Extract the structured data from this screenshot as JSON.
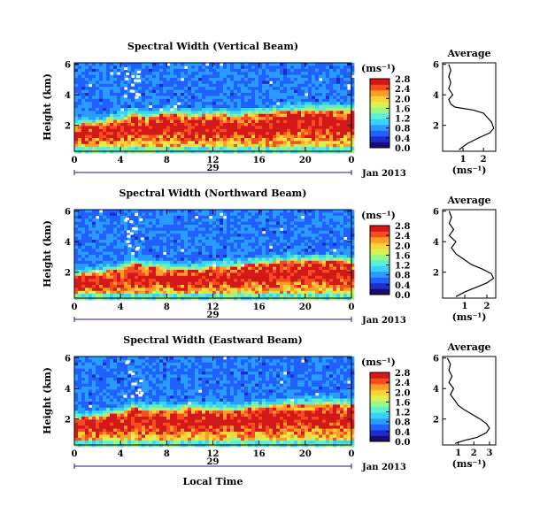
{
  "figure": {
    "date_label": "Jan 2013",
    "x_axis_label": "Local Time",
    "day_label": "29",
    "colorbar_unit": "(ms⁻¹)",
    "average_title": "Average",
    "average_xlabel": "(ms⁻¹)",
    "colormap": [
      "#1a0a7a",
      "#1a2ecc",
      "#2060ff",
      "#2a9cff",
      "#38d2ff",
      "#5cf0d0",
      "#9cf882",
      "#dcf050",
      "#ffd23c",
      "#ff9b28",
      "#f84c20",
      "#d21818"
    ]
  },
  "chart_data": [
    {
      "type": "heatmap",
      "title": "Spectral Width (Vertical Beam)",
      "ylabel": "Height (km)",
      "xticks": [
        "0",
        "4",
        "8",
        "12",
        "16",
        "20",
        "0"
      ],
      "xlim": [
        0,
        24
      ],
      "yticks": [
        "2",
        "4",
        "6"
      ],
      "ylim": [
        0.3,
        6.1
      ],
      "colorbar": {
        "min": 0.0,
        "max": 2.8,
        "ticks": [
          "2.8",
          "2.4",
          "2.0",
          "1.6",
          "1.2",
          "0.8",
          "0.4",
          "0.0"
        ]
      },
      "average_profile": {
        "xticks": [
          "1",
          "2"
        ],
        "xlim": [
          0,
          2.6
        ],
        "x": [
          0.3,
          0.4,
          0.3,
          0.4,
          0.3,
          0.5,
          0.3,
          0.4,
          0.6,
          1.5,
          2.0,
          2.2,
          2.4,
          2.5,
          2.3,
          1.8,
          1.2,
          0.8
        ],
        "y": [
          6.0,
          5.6,
          5.2,
          4.8,
          4.4,
          4.0,
          3.7,
          3.4,
          3.2,
          3.0,
          2.8,
          2.5,
          2.2,
          1.8,
          1.5,
          1.2,
          0.8,
          0.4
        ]
      },
      "boundary": {
        "hours": [
          0,
          2,
          4,
          5,
          6,
          8,
          10,
          12,
          14,
          16,
          18,
          20,
          22,
          24
        ],
        "height_km": [
          2.0,
          2.2,
          2.4,
          2.8,
          2.4,
          2.8,
          2.6,
          2.7,
          2.6,
          2.8,
          2.9,
          3.0,
          3.0,
          3.0
        ]
      }
    },
    {
      "type": "heatmap",
      "title": "Spectral Width (Northward Beam)",
      "ylabel": "Height (km)",
      "xticks": [
        "0",
        "4",
        "8",
        "12",
        "16",
        "20",
        "0"
      ],
      "xlim": [
        0,
        24
      ],
      "yticks": [
        "2",
        "4",
        "6"
      ],
      "ylim": [
        0.3,
        6.1
      ],
      "colorbar": {
        "min": 0.0,
        "max": 2.8,
        "ticks": [
          "2.8",
          "2.4",
          "2.0",
          "1.6",
          "1.2",
          "0.8",
          "0.4",
          "0.0"
        ]
      },
      "average_profile": {
        "xticks": [
          "1",
          "2"
        ],
        "xlim": [
          0,
          2.4
        ],
        "x": [
          0.3,
          0.4,
          0.3,
          0.5,
          0.3,
          0.6,
          0.4,
          0.6,
          0.8,
          1.0,
          1.3,
          1.8,
          2.2,
          2.3,
          2.0,
          1.5,
          1.0,
          0.6
        ],
        "y": [
          6.0,
          5.6,
          5.2,
          4.8,
          4.4,
          4.0,
          3.6,
          3.2,
          3.0,
          2.8,
          2.5,
          2.2,
          1.9,
          1.6,
          1.3,
          1.0,
          0.7,
          0.4
        ]
      },
      "boundary": {
        "hours": [
          0,
          2,
          4,
          5,
          6,
          8,
          10,
          12,
          14,
          16,
          18,
          20,
          22,
          24
        ],
        "height_km": [
          1.8,
          2.0,
          2.2,
          2.6,
          2.4,
          2.2,
          2.2,
          2.3,
          2.4,
          2.6,
          2.7,
          2.8,
          2.8,
          2.6
        ]
      }
    },
    {
      "type": "heatmap",
      "title": "Spectral Width (Eastward Beam)",
      "ylabel": "Height (km)",
      "xticks": [
        "0",
        "4",
        "8",
        "12",
        "16",
        "20",
        "0"
      ],
      "xlim": [
        0,
        24
      ],
      "yticks": [
        "2",
        "4",
        "6"
      ],
      "ylim": [
        0.3,
        6.1
      ],
      "colorbar": {
        "min": 0.0,
        "max": 2.8,
        "ticks": [
          "2.8",
          "2.4",
          "2.0",
          "1.6",
          "1.2",
          "0.8",
          "0.4",
          "0.0"
        ]
      },
      "average_profile": {
        "xticks": [
          "1",
          "2",
          "3"
        ],
        "xlim": [
          0,
          3.4
        ],
        "x": [
          0.3,
          0.5,
          0.4,
          0.6,
          0.4,
          0.7,
          0.5,
          0.8,
          1.0,
          1.4,
          1.9,
          2.4,
          2.8,
          3.0,
          2.8,
          2.2,
          1.4,
          0.8
        ],
        "y": [
          6.0,
          5.6,
          5.2,
          4.8,
          4.4,
          4.0,
          3.6,
          3.2,
          2.9,
          2.6,
          2.3,
          2.0,
          1.7,
          1.4,
          1.1,
          0.8,
          0.6,
          0.4
        ]
      },
      "boundary": {
        "hours": [
          0,
          2,
          4,
          5,
          6,
          8,
          10,
          12,
          14,
          16,
          18,
          20,
          22,
          24
        ],
        "height_km": [
          2.0,
          2.2,
          2.4,
          2.8,
          2.6,
          2.6,
          2.7,
          2.6,
          2.6,
          2.8,
          2.9,
          3.0,
          3.0,
          2.9
        ]
      }
    }
  ]
}
